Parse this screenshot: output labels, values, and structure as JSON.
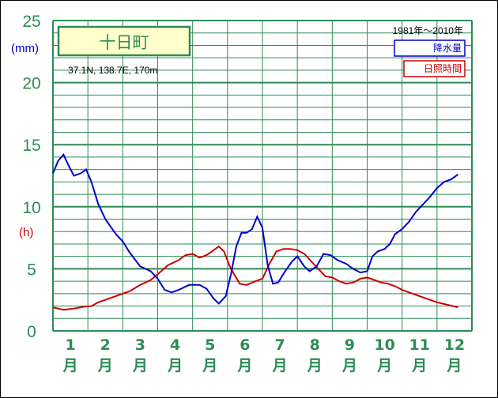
{
  "chart_data": {
    "type": "line",
    "title": "十日町",
    "location": "37.1N,  138.7E,  170m",
    "period": "1981年〜2010年",
    "y_unit_precip": "(mm)",
    "y_unit_sun": "(h)",
    "ylim": [
      0,
      25
    ],
    "y_ticks": [
      "0",
      "5",
      "10",
      "15",
      "20",
      "25"
    ],
    "months": [
      {
        "num": "1",
        "kanji": "月"
      },
      {
        "num": "2",
        "kanji": "月"
      },
      {
        "num": "3",
        "kanji": "月"
      },
      {
        "num": "4",
        "kanji": "月"
      },
      {
        "num": "5",
        "kanji": "月"
      },
      {
        "num": "6",
        "kanji": "月"
      },
      {
        "num": "7",
        "kanji": "月"
      },
      {
        "num": "8",
        "kanji": "月"
      },
      {
        "num": "9",
        "kanji": "月"
      },
      {
        "num": "10",
        "kanji": "月"
      },
      {
        "num": "11",
        "kanji": "月"
      },
      {
        "num": "12",
        "kanji": "月"
      }
    ],
    "x_range": [
      1,
      13
    ],
    "series": [
      {
        "name": "降水量",
        "color": "#0000cc",
        "points": [
          [
            1.0,
            12.7
          ],
          [
            1.15,
            13.7
          ],
          [
            1.3,
            14.2
          ],
          [
            1.45,
            13.3
          ],
          [
            1.6,
            12.5
          ],
          [
            1.8,
            12.7
          ],
          [
            1.95,
            13.0
          ],
          [
            2.1,
            12.0
          ],
          [
            2.3,
            10.2
          ],
          [
            2.5,
            9.0
          ],
          [
            2.8,
            7.8
          ],
          [
            3.0,
            7.2
          ],
          [
            3.2,
            6.3
          ],
          [
            3.5,
            5.2
          ],
          [
            3.8,
            4.8
          ],
          [
            4.0,
            4.2
          ],
          [
            4.2,
            3.3
          ],
          [
            4.4,
            3.1
          ],
          [
            4.6,
            3.3
          ],
          [
            4.9,
            3.7
          ],
          [
            5.2,
            3.7
          ],
          [
            5.4,
            3.4
          ],
          [
            5.6,
            2.6
          ],
          [
            5.75,
            2.2
          ],
          [
            5.95,
            2.8
          ],
          [
            6.1,
            4.6
          ],
          [
            6.25,
            6.8
          ],
          [
            6.4,
            7.9
          ],
          [
            6.55,
            7.9
          ],
          [
            6.7,
            8.2
          ],
          [
            6.85,
            9.2
          ],
          [
            7.0,
            8.3
          ],
          [
            7.15,
            5.3
          ],
          [
            7.3,
            3.8
          ],
          [
            7.45,
            3.9
          ],
          [
            7.65,
            4.8
          ],
          [
            7.85,
            5.6
          ],
          [
            8.0,
            6.0
          ],
          [
            8.2,
            5.2
          ],
          [
            8.35,
            4.8
          ],
          [
            8.55,
            5.2
          ],
          [
            8.75,
            6.2
          ],
          [
            8.95,
            6.1
          ],
          [
            9.15,
            5.7
          ],
          [
            9.4,
            5.4
          ],
          [
            9.6,
            5.0
          ],
          [
            9.8,
            4.7
          ],
          [
            10.0,
            4.8
          ],
          [
            10.15,
            6.0
          ],
          [
            10.3,
            6.4
          ],
          [
            10.5,
            6.6
          ],
          [
            10.65,
            7.0
          ],
          [
            10.8,
            7.8
          ],
          [
            11.0,
            8.2
          ],
          [
            11.2,
            8.8
          ],
          [
            11.4,
            9.6
          ],
          [
            11.6,
            10.2
          ],
          [
            11.8,
            10.8
          ],
          [
            12.0,
            11.5
          ],
          [
            12.2,
            12.0
          ],
          [
            12.4,
            12.2
          ],
          [
            12.6,
            12.6
          ]
        ]
      },
      {
        "name": "日照時間",
        "color": "#cc0000",
        "points": [
          [
            1.0,
            1.9
          ],
          [
            1.3,
            1.7
          ],
          [
            1.6,
            1.8
          ],
          [
            1.9,
            1.95
          ],
          [
            2.1,
            2.0
          ],
          [
            2.3,
            2.3
          ],
          [
            2.6,
            2.6
          ],
          [
            2.9,
            2.9
          ],
          [
            3.2,
            3.2
          ],
          [
            3.5,
            3.7
          ],
          [
            3.8,
            4.1
          ],
          [
            4.1,
            4.8
          ],
          [
            4.3,
            5.3
          ],
          [
            4.6,
            5.7
          ],
          [
            4.8,
            6.1
          ],
          [
            5.0,
            6.2
          ],
          [
            5.2,
            5.9
          ],
          [
            5.4,
            6.1
          ],
          [
            5.6,
            6.5
          ],
          [
            5.75,
            6.8
          ],
          [
            5.9,
            6.4
          ],
          [
            6.05,
            5.3
          ],
          [
            6.2,
            4.5
          ],
          [
            6.35,
            3.8
          ],
          [
            6.55,
            3.7
          ],
          [
            6.8,
            4.0
          ],
          [
            7.0,
            4.2
          ],
          [
            7.2,
            5.4
          ],
          [
            7.4,
            6.4
          ],
          [
            7.6,
            6.6
          ],
          [
            7.8,
            6.6
          ],
          [
            8.0,
            6.5
          ],
          [
            8.2,
            6.2
          ],
          [
            8.4,
            5.6
          ],
          [
            8.6,
            5.0
          ],
          [
            8.8,
            4.4
          ],
          [
            9.0,
            4.3
          ],
          [
            9.2,
            4.0
          ],
          [
            9.4,
            3.8
          ],
          [
            9.6,
            3.9
          ],
          [
            9.8,
            4.2
          ],
          [
            10.0,
            4.3
          ],
          [
            10.2,
            4.1
          ],
          [
            10.4,
            3.9
          ],
          [
            10.6,
            3.8
          ],
          [
            10.8,
            3.6
          ],
          [
            11.0,
            3.3
          ],
          [
            11.2,
            3.1
          ],
          [
            11.4,
            2.9
          ],
          [
            11.6,
            2.7
          ],
          [
            11.8,
            2.5
          ],
          [
            12.0,
            2.3
          ],
          [
            12.3,
            2.1
          ],
          [
            12.6,
            1.9
          ]
        ]
      }
    ],
    "grid": true
  }
}
